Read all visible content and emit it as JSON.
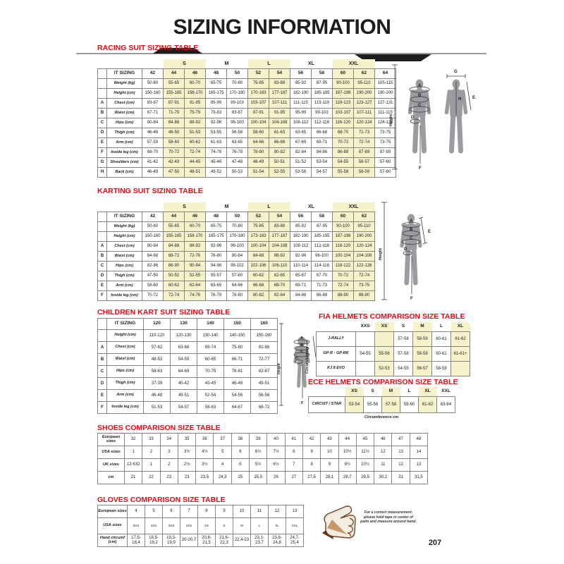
{
  "page": {
    "title": "SIZING INFORMATION",
    "page_number": "207"
  },
  "colors": {
    "accent_red": "#e30b17",
    "highlight_yellow": "#f6f2cb",
    "silhouette_gray": "#9a9c9f",
    "divider_gray": "#9c9c9c"
  },
  "figures": {
    "height": "Height",
    "A": "A",
    "B": "B",
    "C": "C",
    "D": "D",
    "E": "E",
    "F": "F",
    "G": "G",
    "H": "H"
  },
  "racing": {
    "title": "RACING SUIT SIZING TABLE",
    "corner_label": "IT SIZING",
    "groups": [
      {
        "label": "S",
        "start": 1,
        "end": 2,
        "highlight": true
      },
      {
        "label": "M",
        "start": 3,
        "end": 4,
        "highlight": false
      },
      {
        "label": "L",
        "start": 5,
        "end": 6,
        "highlight": true
      },
      {
        "label": "XL",
        "start": 7,
        "end": 8,
        "highlight": false
      },
      {
        "label": "XXL",
        "start": 9,
        "end": 10,
        "highlight": true
      }
    ],
    "sizes": [
      "42",
      "44",
      "46",
      "48",
      "50",
      "52",
      "54",
      "56",
      "58",
      "60",
      "62",
      "64"
    ],
    "highlight_cols": [
      1,
      2,
      5,
      6,
      9,
      10
    ],
    "rows": [
      {
        "letter": "",
        "label": "Weight (kg)",
        "values": [
          "50-60",
          "55-65",
          "60-70",
          "65-75",
          "70-80",
          "75-85",
          "83-88",
          "85-92",
          "87-95",
          "90-100",
          "95-110",
          "105-115"
        ]
      },
      {
        "letter": "",
        "label": "Height (cm)",
        "values": [
          "150-160",
          "155-165",
          "158-170",
          "165-175",
          "170-180",
          "170-183",
          "177-187",
          "182-190",
          "185-195",
          "187-198",
          "190-200",
          "190-200"
        ]
      },
      {
        "letter": "A",
        "label": "Chest (cm)",
        "values": [
          "83-87",
          "87-91",
          "91-95",
          "95-99",
          "99-103",
          "103-107",
          "107-111",
          "111-115",
          "115-119",
          "119-123",
          "123-127",
          "127-131"
        ]
      },
      {
        "letter": "B",
        "label": "Waist (cm)",
        "values": [
          "67-71",
          "71-75",
          "75-79",
          "79-83",
          "83-87",
          "87-91",
          "91-95",
          "95-99",
          "99-103",
          "103-107",
          "107-111",
          "111-115"
        ]
      },
      {
        "letter": "C",
        "label": "Hips (cm)",
        "values": [
          "80-84",
          "84-88",
          "88-92",
          "92-96",
          "96-100",
          "100-104",
          "104-108",
          "108-112",
          "112-116",
          "116-120",
          "120-124",
          "124-128"
        ]
      },
      {
        "letter": "D",
        "label": "Thigh (cm)",
        "values": [
          "46-48",
          "48-50",
          "51-53",
          "53-55",
          "56-58",
          "58-60",
          "61-63",
          "63-65",
          "66-68",
          "68-70",
          "71-73",
          "73-75"
        ]
      },
      {
        "letter": "E",
        "label": "Arm (cm)",
        "values": [
          "57-59",
          "58-60",
          "60-62",
          "61-63",
          "63-65",
          "64-66",
          "66-68",
          "67-69",
          "69-71",
          "70-72",
          "72-74",
          "73-75"
        ]
      },
      {
        "letter": "F",
        "label": "Inside leg (cm)",
        "values": [
          "68-70",
          "70-72",
          "72-74",
          "74-76",
          "76-78",
          "78-80",
          "80-82",
          "82-84",
          "84-86",
          "86-88",
          "87-89",
          "87-89"
        ]
      },
      {
        "letter": "G",
        "label": "Shoulders (cm)",
        "values": [
          "41-42",
          "42-43",
          "44-45",
          "45-46",
          "47-48",
          "48-49",
          "50-51",
          "51-52",
          "53-54",
          "54-55",
          "56-57",
          "57-60"
        ]
      },
      {
        "letter": "H",
        "label": "Back (cm)",
        "values": [
          "46-49",
          "47-50",
          "48-51",
          "49-52",
          "50-53",
          "51-54",
          "52-55",
          "53-56",
          "54-57",
          "55-58",
          "56-59",
          "57-60"
        ]
      }
    ]
  },
  "karting": {
    "title": "KARTING SUIT SIZING TABLE",
    "corner_label": "IT SIZING",
    "groups": [
      {
        "label": "S",
        "start": 1,
        "end": 2,
        "highlight": true
      },
      {
        "label": "M",
        "start": 3,
        "end": 4,
        "highlight": false
      },
      {
        "label": "L",
        "start": 5,
        "end": 6,
        "highlight": true
      },
      {
        "label": "XL",
        "start": 7,
        "end": 8,
        "highlight": false
      },
      {
        "label": "XXL",
        "start": 9,
        "end": 10,
        "highlight": true
      }
    ],
    "sizes": [
      "42",
      "44",
      "46",
      "48",
      "50",
      "52",
      "54",
      "56",
      "58",
      "60",
      "62"
    ],
    "highlight_cols": [
      1,
      2,
      5,
      6,
      9,
      10
    ],
    "rows": [
      {
        "letter": "",
        "label": "Weight (kg)",
        "values": [
          "50-60",
          "55-65",
          "60-70",
          "65-75",
          "70-80",
          "75-85",
          "83-88",
          "85-92",
          "87-95",
          "90-100",
          "95-110"
        ]
      },
      {
        "letter": "",
        "label": "Height (cm)",
        "values": [
          "150-160",
          "155-165",
          "158-170",
          "165-175",
          "170-180",
          "173-183",
          "177-187",
          "182-190",
          "185-195",
          "187-198",
          "190-200"
        ]
      },
      {
        "letter": "A",
        "label": "Chest (cm)",
        "values": [
          "80-84",
          "84-88",
          "88-92",
          "92-96",
          "96-100",
          "100-104",
          "104-108",
          "108-112",
          "112-116",
          "116-120",
          "120-124"
        ]
      },
      {
        "letter": "B",
        "label": "Waist (cm)",
        "values": [
          "64-68",
          "68-72",
          "72-76",
          "76-80",
          "80-84",
          "84-88",
          "88-92",
          "92-96",
          "96-100",
          "100-104",
          "104-108"
        ]
      },
      {
        "letter": "C",
        "label": "Hips (cm)",
        "values": [
          "82-86",
          "86-90",
          "90-94",
          "94-98",
          "98-102",
          "102-106",
          "106-110",
          "110-114",
          "114-118",
          "118-122",
          "122-126"
        ]
      },
      {
        "letter": "D",
        "label": "Thigh (cm)",
        "values": [
          "47-50",
          "50-52",
          "52-55",
          "55-57",
          "57-60",
          "60-62",
          "62-65",
          "65-67",
          "67-70",
          "70-72",
          "72-74"
        ]
      },
      {
        "letter": "E",
        "label": "Arm (cm)",
        "values": [
          "58-60",
          "60-62",
          "62-64",
          "63-65",
          "64-66",
          "66-68",
          "68-70",
          "69-71",
          "71-73",
          "72-74",
          "73-75"
        ]
      },
      {
        "letter": "F",
        "label": "Inside leg (cm)",
        "values": [
          "70-72",
          "72-74",
          "74-76",
          "76-78",
          "78-80",
          "80-82",
          "82-84",
          "84-86",
          "86-88",
          "88-90",
          "88-90"
        ]
      }
    ]
  },
  "children": {
    "title": "CHILDREN KART SUIT SIZING TABLE",
    "corner_label": "IT SIZING",
    "sizes": [
      "120",
      "130",
      "140",
      "150",
      "160"
    ],
    "highlight_cols": [],
    "rows": [
      {
        "letter": "",
        "label": "Height (cm)",
        "values": [
          "110-120",
          "120-130",
          "130-140",
          "140-150",
          "150-160"
        ]
      },
      {
        "letter": "A",
        "label": "Chest (cm)",
        "values": [
          "57-62",
          "63-68",
          "69-74",
          "75-80",
          "81-86"
        ]
      },
      {
        "letter": "B",
        "label": "Waist (cm)",
        "values": [
          "48-53",
          "54-59",
          "60-65",
          "66-71",
          "72-77"
        ]
      },
      {
        "letter": "C",
        "label": "Hips (cm)",
        "values": [
          "58-63",
          "64-69",
          "70-75",
          "76-81",
          "82-87"
        ]
      },
      {
        "letter": "D",
        "label": "Thigh (cm)",
        "values": [
          "37-39",
          "40-42",
          "43-45",
          "46-48",
          "49-51"
        ]
      },
      {
        "letter": "E",
        "label": "Arm (cm)",
        "values": [
          "46-48",
          "49-51",
          "52-54",
          "54-56",
          "56-58"
        ]
      },
      {
        "letter": "F",
        "label": "Inside leg (cm)",
        "values": [
          "51-53",
          "54-57",
          "58-63",
          "64-67",
          "68-72"
        ]
      }
    ]
  },
  "fia": {
    "title": "FIA HELMETS COMPARISON SIZE TABLE",
    "side_label": "Circumference cm",
    "columns": [
      "XXS",
      "XS",
      "S",
      "M",
      "L",
      "XL"
    ],
    "highlight_cols": [
      1,
      3,
      5
    ],
    "rows": [
      {
        "label": "J-RALLY",
        "values": [
          "",
          "",
          "57-58",
          "58-59",
          "60-61",
          "61-62"
        ]
      },
      {
        "label": "GP-R · GP-RK",
        "values": [
          "54-55",
          "55-56",
          "57-58",
          "58-59",
          "60-61",
          "61-61+"
        ]
      },
      {
        "label": "KJ 8 EVO",
        "values": [
          "",
          "52-53",
          "54-55",
          "56-57",
          "58-59",
          ""
        ]
      }
    ]
  },
  "ece": {
    "title": "ECE HELMETS COMPARISON SIZE TABLE",
    "caption": "Circumference cm",
    "columns": [
      "XS",
      "S",
      "M",
      "L",
      "XL",
      "XXL"
    ],
    "highlight_cols": [
      0,
      2,
      4
    ],
    "rows": [
      {
        "label": "CIRCUIT / STAR",
        "values": [
          "53-54",
          "55-56",
          "57-58",
          "59-60",
          "61-62",
          "63-64"
        ]
      }
    ]
  },
  "shoes": {
    "title": "SHOES COMPARISON SIZE TABLE",
    "rows": [
      {
        "label": "European sizes",
        "values": [
          "32",
          "33",
          "34",
          "35",
          "36",
          "37",
          "38",
          "39",
          "40",
          "41",
          "42",
          "43",
          "44",
          "45",
          "46",
          "47",
          "48"
        ]
      },
      {
        "label": "USA sizes",
        "values": [
          "1",
          "2",
          "3",
          "3½",
          "4½",
          "5",
          "6",
          "6½",
          "7½",
          "8",
          "9",
          "10",
          "10½",
          "11½",
          "12",
          "13",
          "14"
        ]
      },
      {
        "label": "UK sizes",
        "values": [
          "13 KID",
          "1",
          "2",
          "2½",
          "3½",
          "4",
          "5",
          "5½",
          "6½",
          "7",
          "8",
          "9",
          "9½",
          "10½",
          "11",
          "12",
          "13"
        ]
      },
      {
        "label": "cm",
        "values": [
          "21",
          "22",
          "23",
          "23",
          "23,5",
          "24,3",
          "25",
          "25,5",
          "26",
          "27",
          "27,5",
          "28,1",
          "28,7",
          "29,5",
          "30,2",
          "31",
          "31,5"
        ]
      }
    ]
  },
  "gloves": {
    "title": "GLOVES COMPARISON SIZE TABLE",
    "note": "For a correct measurement: please hold tape in center of palm and measure around hand.",
    "rows": [
      {
        "label": "European sizes",
        "values": [
          "4",
          "5",
          "6",
          "7",
          "8",
          "9",
          "10",
          "11",
          "12",
          "13"
        ]
      },
      {
        "label": "USA sizes",
        "values": [
          "5XS",
          "4XS",
          "3XS",
          "2XS",
          "XS",
          "S",
          "M",
          "L",
          "XL",
          "XXL"
        ]
      },
      {
        "label": "Hand circumf (cm)",
        "values": [
          "17,5-18,4",
          "18,5-19,2",
          "19,3-19,9",
          "20-20,7",
          "20,8-21,5",
          "21,6-22,3",
          "22,4-23",
          "23,1-23,7",
          "23,8-24,8",
          "24,7-25,4"
        ]
      }
    ]
  }
}
